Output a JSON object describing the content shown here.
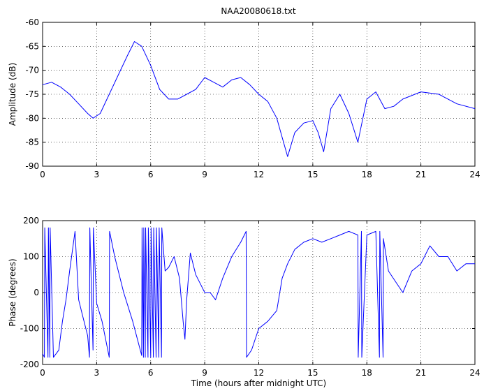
{
  "chart_data": [
    {
      "type": "line",
      "title": "NAA20080618.txt",
      "xlabel": "",
      "ylabel": "Amplitude (dB)",
      "xlim": [
        0,
        24
      ],
      "ylim": [
        -90,
        -60
      ],
      "grid": true,
      "xticks": [
        "0",
        "3",
        "6",
        "9",
        "12",
        "15",
        "18",
        "21",
        "24"
      ],
      "yticks": [
        "-60",
        "-65",
        "-70",
        "-75",
        "-80",
        "-85",
        "-90"
      ],
      "series": [
        {
          "color": "#0000ff",
          "x": [
            0,
            0.5,
            1.0,
            1.5,
            2.0,
            2.5,
            2.8,
            3.2,
            3.7,
            4.2,
            4.7,
            5.1,
            5.5,
            6.0,
            6.5,
            7.0,
            7.5,
            8.0,
            8.5,
            9.0,
            9.5,
            10.0,
            10.5,
            11.0,
            11.5,
            12.0,
            12.5,
            13.0,
            13.3,
            13.6,
            14.0,
            14.5,
            15.0,
            15.3,
            15.6,
            16.0,
            16.5,
            17.0,
            17.5,
            18.0,
            18.5,
            19.0,
            19.5,
            20.0,
            21.0,
            22.0,
            23.0,
            24.0
          ],
          "y": [
            -73,
            -72.5,
            -73.5,
            -75,
            -77,
            -79,
            -80,
            -79,
            -75,
            -71,
            -67,
            -64,
            -65,
            -69,
            -74,
            -76,
            -76,
            -75,
            -74,
            -71.5,
            -72.5,
            -73.5,
            -72,
            -71.5,
            -73,
            -75,
            -76.5,
            -80,
            -84,
            -88,
            -83,
            -81,
            -80.5,
            -83,
            -87,
            -78,
            -75,
            -79,
            -85,
            -76,
            -74.5,
            -78,
            -77.5,
            -76,
            -74.5,
            -75,
            -77,
            -78
          ]
        }
      ]
    },
    {
      "type": "line",
      "title": "",
      "xlabel": "Time (hours after midnight UTC)",
      "ylabel": "Phase (degrees)",
      "xlim": [
        0,
        24
      ],
      "ylim": [
        -200,
        200
      ],
      "grid": true,
      "xticks": [
        "0",
        "3",
        "6",
        "9",
        "12",
        "15",
        "18",
        "21",
        "24"
      ],
      "yticks": [
        "200",
        "100",
        "0",
        "-100",
        "-200"
      ],
      "series": [
        {
          "color": "#0000ff",
          "x": [
            0,
            0.1,
            0.12,
            0.3,
            0.32,
            0.4,
            0.42,
            0.6,
            0.9,
            1.1,
            1.3,
            1.5,
            1.8,
            2.0,
            2.2,
            2.5,
            2.6,
            2.62,
            2.8,
            2.82,
            3.0,
            3.3,
            3.7,
            3.72,
            4.0,
            4.5,
            5.0,
            5.5,
            5.52,
            5.6,
            5.62,
            5.7,
            5.72,
            5.85,
            5.87,
            6.0,
            6.02,
            6.15,
            6.17,
            6.3,
            6.32,
            6.45,
            6.47,
            6.6,
            6.62,
            6.8,
            7.0,
            7.3,
            7.6,
            7.8,
            7.9,
            8.0,
            8.2,
            8.5,
            8.8,
            9.0,
            9.3,
            9.6,
            10.0,
            10.5,
            11.0,
            11.3,
            11.32,
            11.6,
            12.0,
            12.5,
            13.0,
            13.3,
            13.6,
            14.0,
            14.5,
            15.0,
            15.5,
            16.0,
            16.5,
            17.0,
            17.5,
            17.52,
            17.7,
            17.72,
            18.0,
            18.5,
            18.7,
            18.72,
            18.9,
            18.92,
            19.2,
            19.6,
            20.0,
            20.5,
            21.0,
            21.5,
            22.0,
            22.5,
            23.0,
            23.5,
            24.0
          ],
          "y": [
            -170,
            -180,
            180,
            -180,
            180,
            -180,
            180,
            -180,
            -160,
            -80,
            -20,
            60,
            170,
            -20,
            -60,
            -120,
            -180,
            180,
            -160,
            180,
            -30,
            -80,
            -180,
            170,
            100,
            0,
            -80,
            -175,
            180,
            -180,
            180,
            -180,
            180,
            -180,
            180,
            -180,
            180,
            -180,
            180,
            -180,
            180,
            -180,
            180,
            -180,
            180,
            60,
            70,
            100,
            40,
            -80,
            -130,
            -20,
            110,
            50,
            20,
            0,
            0,
            -20,
            40,
            100,
            140,
            170,
            -180,
            -160,
            -100,
            -80,
            -50,
            40,
            80,
            120,
            140,
            150,
            140,
            150,
            160,
            170,
            160,
            -180,
            170,
            -180,
            160,
            170,
            -180,
            170,
            -180,
            150,
            60,
            30,
            0,
            60,
            80,
            130,
            100,
            100,
            60,
            80,
            80
          ]
        }
      ]
    }
  ]
}
